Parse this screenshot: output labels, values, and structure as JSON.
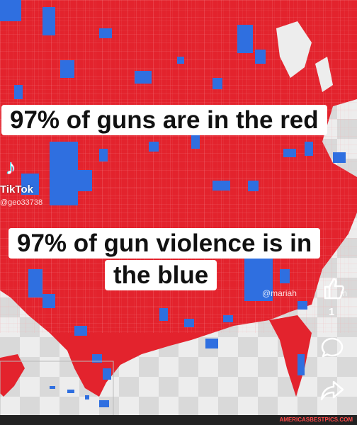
{
  "captions": {
    "line1": "97% of guns are in the red",
    "line2a": "97% of gun violence is in",
    "line2b": "the blue"
  },
  "tiktok": {
    "logo_icon": "tiktok-note-icon",
    "logo_glyph": "♪",
    "name": "TikTok",
    "handle": "@geo33738"
  },
  "creator": {
    "handle": "@mariah",
    "handle_tail": "m"
  },
  "actions": {
    "like_count": "1"
  },
  "watermark": "AMERICASBESTPICS.COM",
  "colors": {
    "red": "#e3232d",
    "blue": "#2f6fe0",
    "border": "#f6a3a6"
  }
}
